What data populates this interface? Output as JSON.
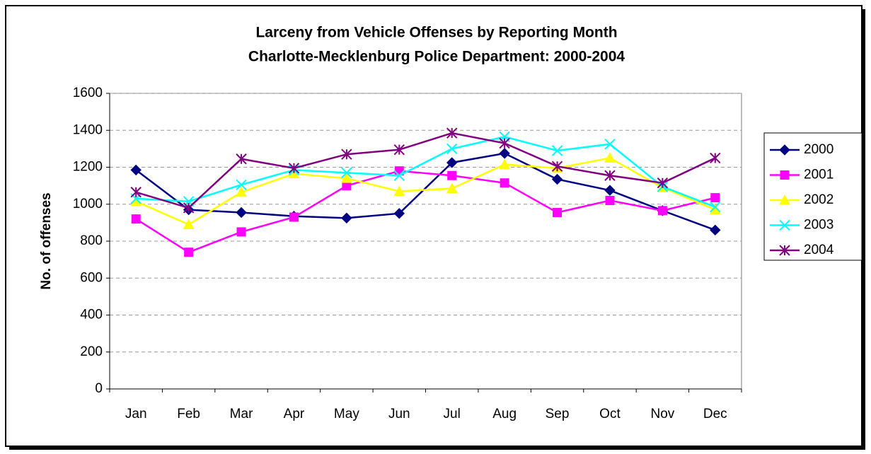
{
  "chart_data": {
    "type": "line",
    "title": [
      "Larceny from Vehicle Offenses by Reporting Month",
      "Charlotte-Mecklenburg Police Department: 2000-2004"
    ],
    "y_label": "No. of offenses",
    "categories": [
      "Jan",
      "Feb",
      "Mar",
      "Apr",
      "May",
      "Jun",
      "Jul",
      "Aug",
      "Sep",
      "Oct",
      "Nov",
      "Dec"
    ],
    "series": [
      {
        "name": "2000",
        "color": "#000080",
        "marker": "diamond",
        "values": [
          1185,
          970,
          955,
          935,
          925,
          950,
          1225,
          1275,
          1135,
          1075,
          965,
          860
        ]
      },
      {
        "name": "2001",
        "color": "#ff00ff",
        "marker": "square",
        "values": [
          920,
          740,
          850,
          930,
          1100,
          1180,
          1155,
          1115,
          955,
          1020,
          965,
          1035
        ]
      },
      {
        "name": "2002",
        "color": "#ffff00",
        "marker": "triangle",
        "values": [
          1015,
          890,
          1065,
          1165,
          1140,
          1070,
          1085,
          1215,
          1195,
          1250,
          1090,
          970
        ]
      },
      {
        "name": "2003",
        "color": "#00ffff",
        "marker": "x",
        "values": [
          1030,
          1015,
          1105,
          1185,
          1170,
          1155,
          1300,
          1365,
          1290,
          1325,
          1095,
          985
        ]
      },
      {
        "name": "2004",
        "color": "#800080",
        "marker": "asterisk",
        "values": [
          1065,
          980,
          1245,
          1195,
          1270,
          1295,
          1385,
          1330,
          1205,
          1155,
          1115,
          1250
        ]
      }
    ],
    "ylim": [
      0,
      1600
    ],
    "yticks": [
      0,
      200,
      400,
      600,
      800,
      1000,
      1200,
      1400,
      1600
    ],
    "grid": true,
    "legend": "right"
  }
}
